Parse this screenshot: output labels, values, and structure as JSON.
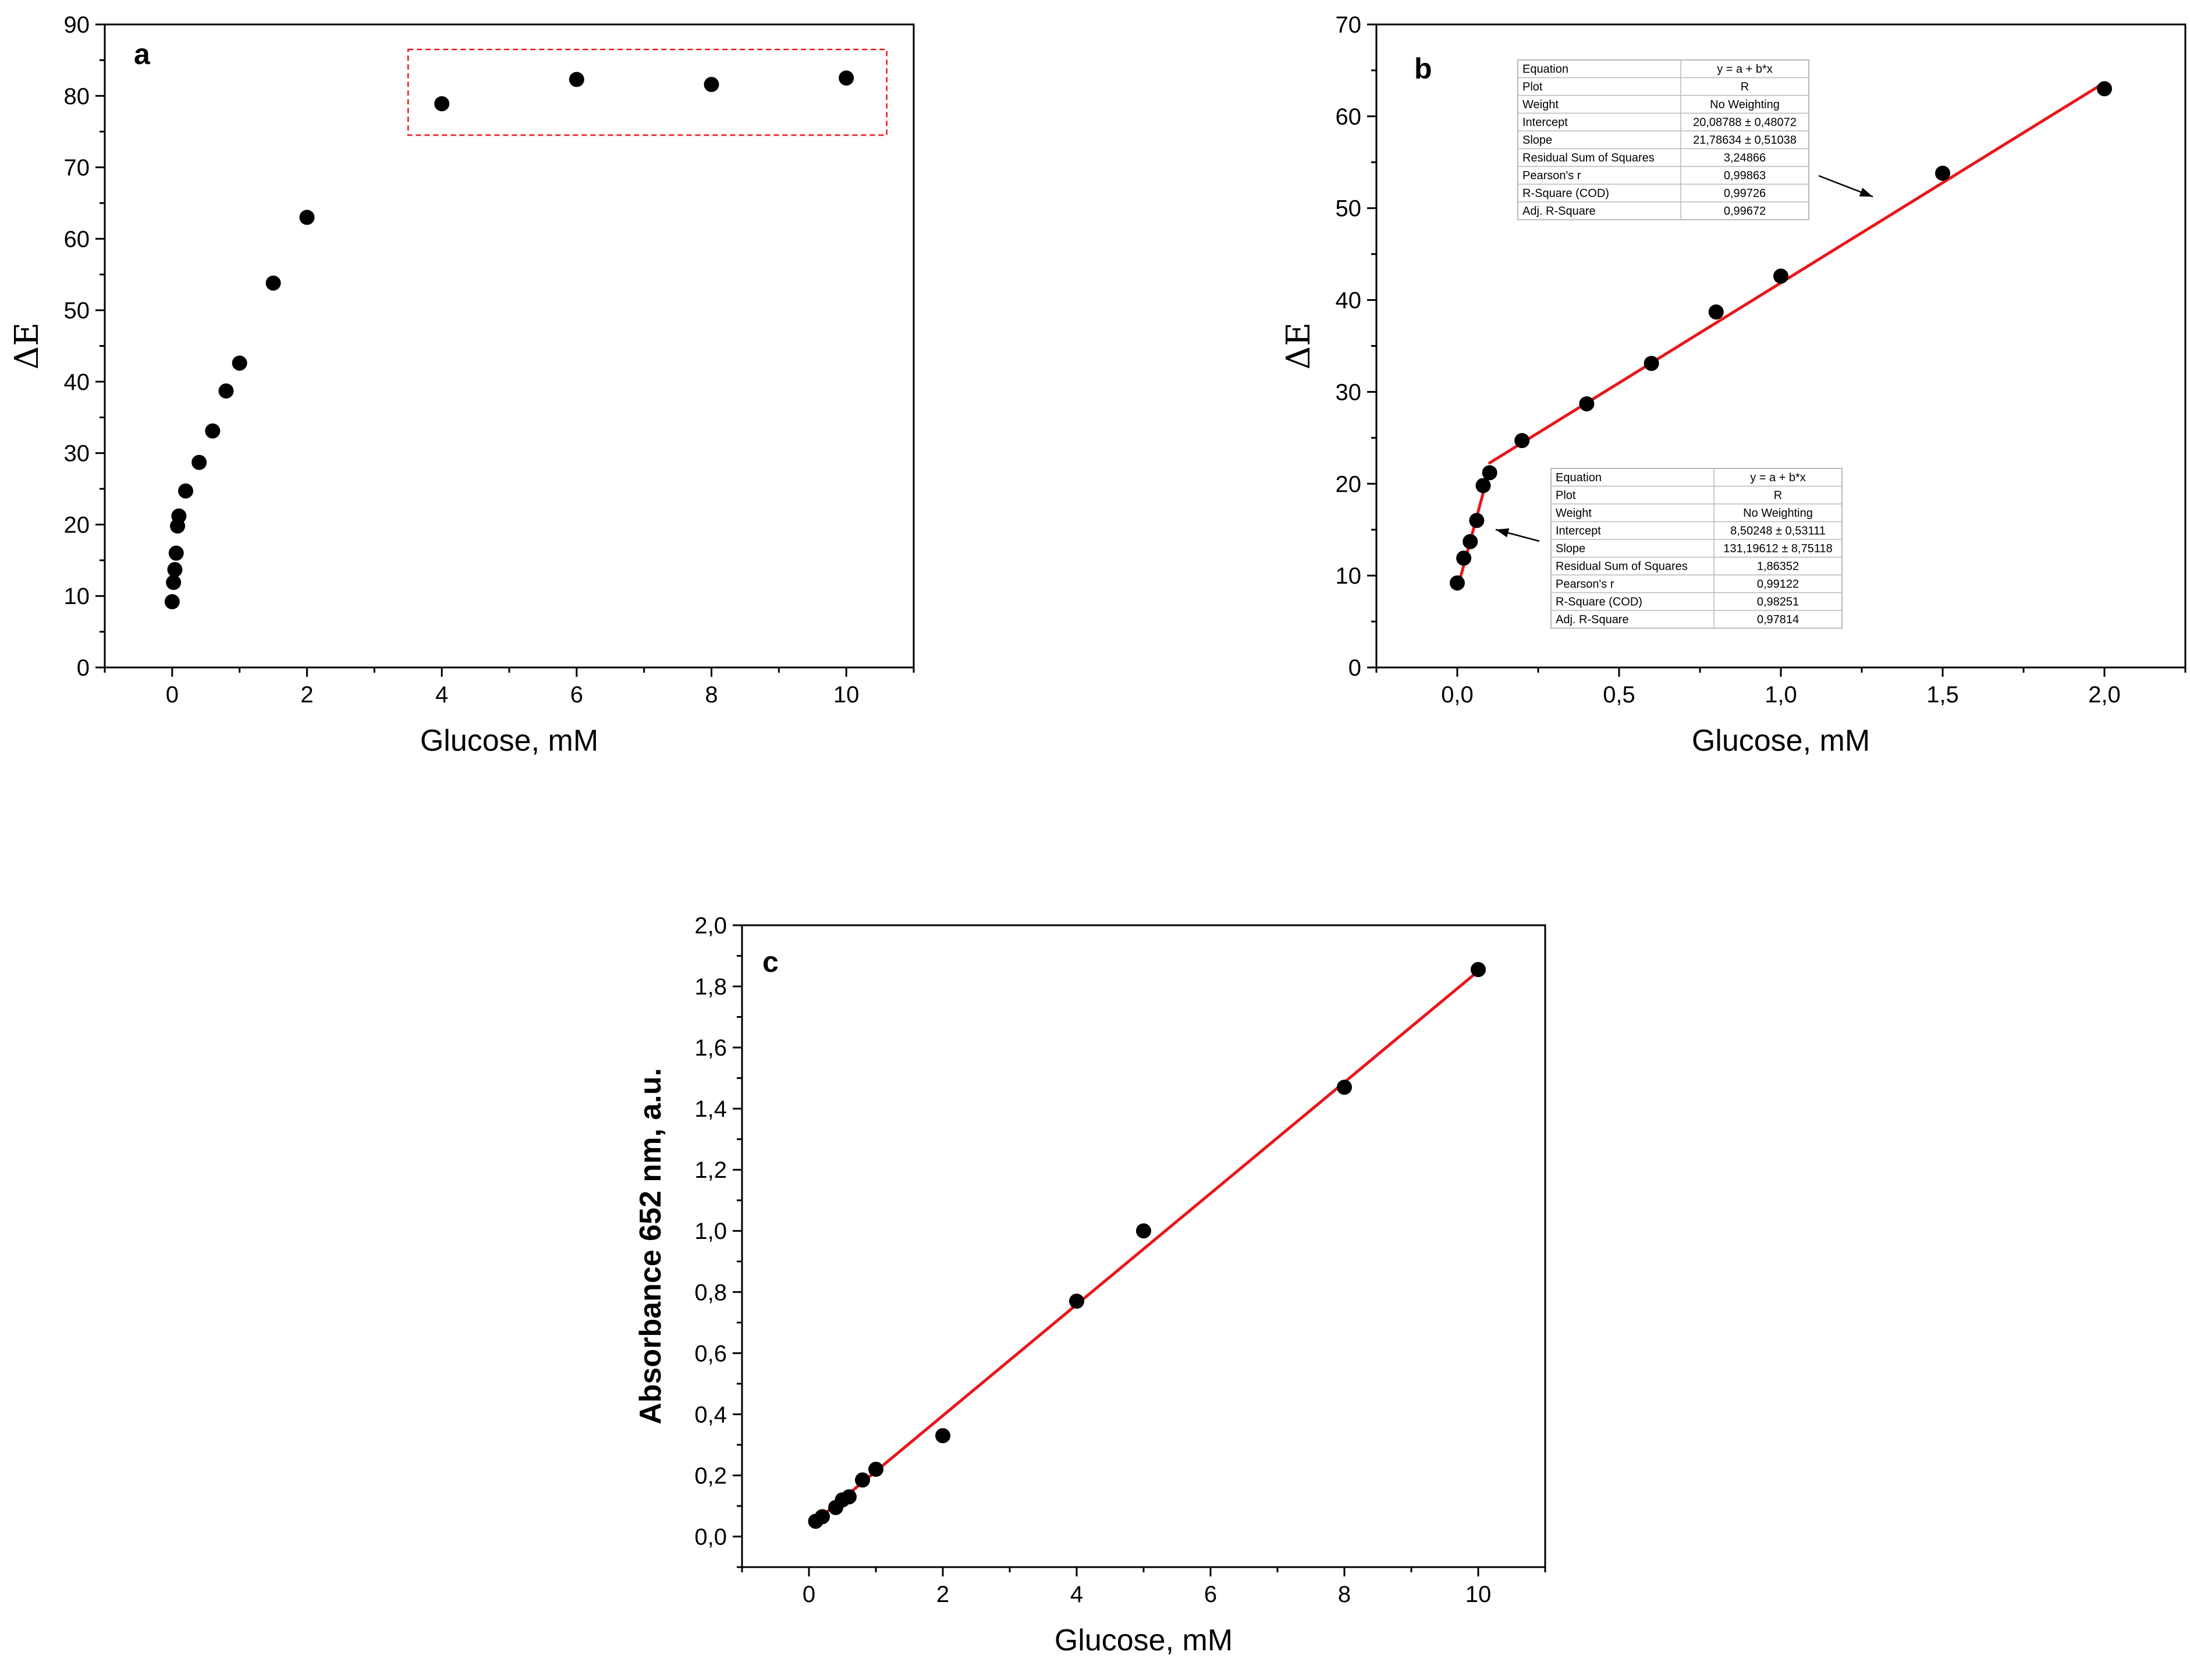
{
  "colors": {
    "axis": "#000000",
    "points": "#000000",
    "fit": "#e8161b",
    "highlight": "#e8161b",
    "table_grid": "#b8b8b8"
  },
  "chart_data": [
    {
      "id": "a",
      "type": "scatter",
      "panel_label": "a",
      "xlabel": "Glucose, mM",
      "ylabel": "ΔE",
      "xlim": [
        -1,
        11
      ],
      "ylim": [
        0,
        90
      ],
      "x_ticks": [
        0,
        2,
        4,
        6,
        8,
        10
      ],
      "x_tick_labels": [
        "0",
        "2",
        "4",
        "6",
        "8",
        "10"
      ],
      "y_ticks": [
        0,
        10,
        20,
        30,
        40,
        50,
        60,
        70,
        80,
        90
      ],
      "y_tick_labels": [
        "0",
        "10",
        "20",
        "30",
        "40",
        "50",
        "60",
        "70",
        "80",
        "90"
      ],
      "series": [
        {
          "name": "points",
          "x": [
            0.0,
            0.02,
            0.04,
            0.06,
            0.08,
            0.1,
            0.2,
            0.4,
            0.6,
            0.8,
            1.0,
            1.5,
            2.0,
            4.0,
            6.0,
            8.0,
            10.0
          ],
          "y": [
            9.2,
            11.9,
            13.7,
            16.0,
            19.8,
            21.2,
            24.7,
            28.7,
            33.1,
            38.7,
            42.6,
            53.8,
            63.0,
            78.9,
            82.3,
            81.6,
            82.5
          ]
        }
      ],
      "annotations": [
        {
          "kind": "dashed-box",
          "x_range": [
            3.5,
            10.6
          ],
          "y_range": [
            74.5,
            86.5
          ],
          "note": "saturation region"
        }
      ]
    },
    {
      "id": "b",
      "type": "scatter",
      "panel_label": "b",
      "xlabel": "Glucose, mM",
      "ylabel": "ΔE",
      "xlim": [
        -0.25,
        2.25
      ],
      "ylim": [
        0,
        70
      ],
      "x_ticks": [
        0,
        0.5,
        1.0,
        1.5,
        2.0
      ],
      "x_tick_labels": [
        "0,0",
        "0,5",
        "1,0",
        "1,5",
        "2,0"
      ],
      "y_ticks": [
        0,
        10,
        20,
        30,
        40,
        50,
        60,
        70
      ],
      "y_tick_labels": [
        "0",
        "10",
        "20",
        "30",
        "40",
        "50",
        "60",
        "70"
      ],
      "series": [
        {
          "name": "points",
          "x": [
            0.0,
            0.02,
            0.04,
            0.06,
            0.08,
            0.1,
            0.2,
            0.4,
            0.6,
            0.8,
            1.0,
            1.5,
            2.0
          ],
          "y": [
            9.2,
            11.9,
            13.7,
            16.0,
            19.8,
            21.2,
            24.7,
            28.7,
            33.1,
            38.7,
            42.6,
            53.8,
            63.0
          ]
        }
      ],
      "fits": [
        {
          "name": "low-range fit",
          "intercept": 8.50248,
          "slope": 131.19612,
          "x_range": [
            0.0,
            0.1
          ]
        },
        {
          "name": "high-range fit",
          "intercept": 20.08788,
          "slope": 21.78634,
          "x_range": [
            0.1,
            2.0
          ]
        }
      ],
      "fit_tables": [
        {
          "position": "upper",
          "rows": [
            [
              "Equation",
              "y = a + b*x"
            ],
            [
              "Plot",
              "R"
            ],
            [
              "Weight",
              "No Weighting"
            ],
            [
              "Intercept",
              "20,08788 ± 0,48072"
            ],
            [
              "Slope",
              "21,78634 ± 0,51038"
            ],
            [
              "Residual Sum of Squares",
              "3,24866"
            ],
            [
              "Pearson's r",
              "0,99863"
            ],
            [
              "R-Square (COD)",
              "0,99726"
            ],
            [
              "Adj. R-Square",
              "0,99672"
            ]
          ]
        },
        {
          "position": "lower",
          "rows": [
            [
              "Equation",
              "y = a + b*x"
            ],
            [
              "Plot",
              "R"
            ],
            [
              "Weight",
              "No Weighting"
            ],
            [
              "Intercept",
              "8,50248 ± 0,53111"
            ],
            [
              "Slope",
              "131,19612 ± 8,75118"
            ],
            [
              "Residual Sum of Squares",
              "1,86352"
            ],
            [
              "Pearson's r",
              "0,99122"
            ],
            [
              "R-Square (COD)",
              "0,98251"
            ],
            [
              "Adj. R-Square",
              "0,97814"
            ]
          ]
        }
      ]
    },
    {
      "id": "c",
      "type": "scatter",
      "panel_label": "c",
      "xlabel": "Glucose, mM",
      "ylabel": "Absorbance 652 nm, a.u.",
      "xlim": [
        -1,
        11
      ],
      "ylim": [
        -0.1,
        2.0
      ],
      "x_ticks": [
        0,
        2,
        4,
        6,
        8,
        10
      ],
      "x_tick_labels": [
        "0",
        "2",
        "4",
        "6",
        "8",
        "10"
      ],
      "y_ticks": [
        0.0,
        0.2,
        0.4,
        0.6,
        0.8,
        1.0,
        1.2,
        1.4,
        1.6,
        1.8,
        2.0
      ],
      "y_tick_labels": [
        "0,0",
        "0,2",
        "0,4",
        "0,6",
        "0,8",
        "1,0",
        "1,2",
        "1,4",
        "1,6",
        "1,8",
        "2,0"
      ],
      "series": [
        {
          "name": "points",
          "x": [
            0.1,
            0.2,
            0.4,
            0.5,
            0.6,
            0.8,
            1.0,
            2.0,
            4.0,
            5.0,
            8.0,
            10.0
          ],
          "y": [
            0.05,
            0.065,
            0.095,
            0.12,
            0.13,
            0.185,
            0.22,
            0.33,
            0.77,
            1.0,
            1.47,
            1.855
          ]
        }
      ],
      "fits": [
        {
          "name": "linear fit",
          "x_range": [
            0.1,
            10.0
          ],
          "y_range": [
            0.05,
            1.85
          ]
        }
      ]
    }
  ]
}
